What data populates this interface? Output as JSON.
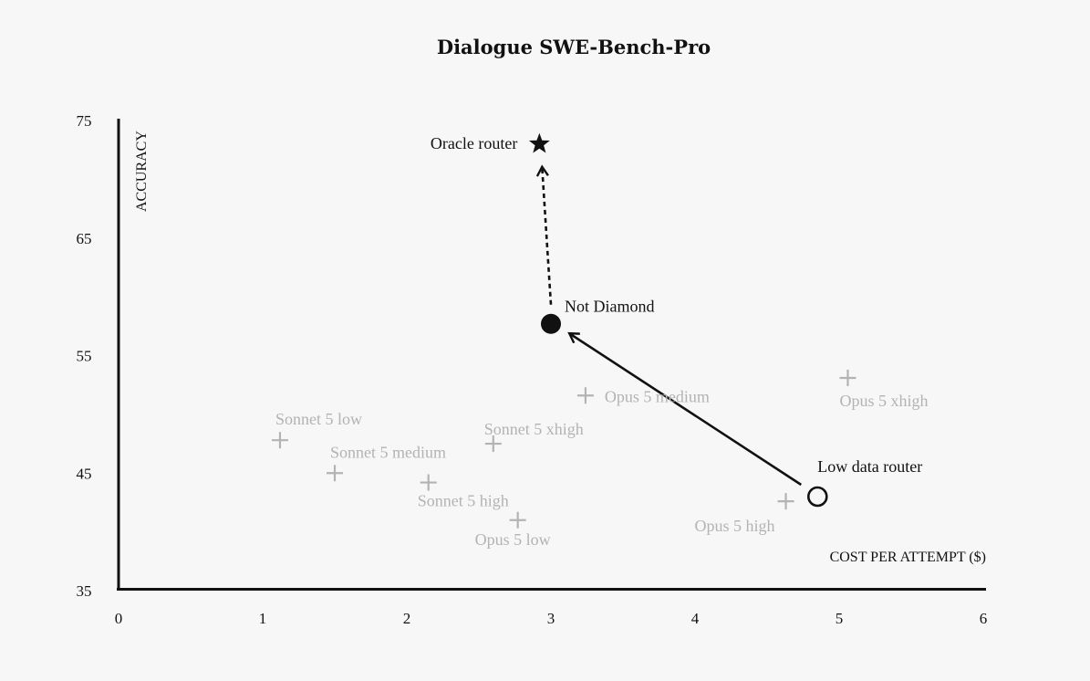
{
  "chart_data": {
    "type": "scatter",
    "title": "Dialogue SWE-Bench-Pro",
    "xlabel": "COST PER ATTEMPT ($)",
    "ylabel": "ACCURACY",
    "xlim": [
      0,
      6
    ],
    "ylim": [
      35,
      75
    ],
    "x_ticks": [
      "0",
      "1",
      "2",
      "3",
      "4",
      "5",
      "6"
    ],
    "y_ticks": [
      "35",
      "45",
      "55",
      "65",
      "75"
    ],
    "models": [
      {
        "name": "Sonnet 5 low",
        "x": 1.12,
        "y": 47.8
      },
      {
        "name": "Sonnet 5 medium",
        "x": 1.5,
        "y": 45.0
      },
      {
        "name": "Sonnet 5 high",
        "x": 2.15,
        "y": 44.2
      },
      {
        "name": "Sonnet 5 xhigh",
        "x": 2.6,
        "y": 47.5
      },
      {
        "name": "Opus 5 low",
        "x": 2.77,
        "y": 41.0
      },
      {
        "name": "Opus 5 medium",
        "x": 3.24,
        "y": 51.6
      },
      {
        "name": "Opus 5 high",
        "x": 4.63,
        "y": 42.6
      },
      {
        "name": "Opus 5 xhigh",
        "x": 5.06,
        "y": 53.1
      }
    ],
    "routers": [
      {
        "name": "Low data router",
        "x": 4.85,
        "y": 43.0,
        "marker": "open-circle"
      },
      {
        "name": "Not Diamond",
        "x": 3.0,
        "y": 57.7,
        "marker": "filled-circle"
      },
      {
        "name": "Oracle router",
        "x": 2.92,
        "y": 73.0,
        "marker": "star"
      }
    ],
    "colors": {
      "models": "#b3b3b3",
      "routers": "#111111",
      "background": "#f7f7f7"
    }
  }
}
